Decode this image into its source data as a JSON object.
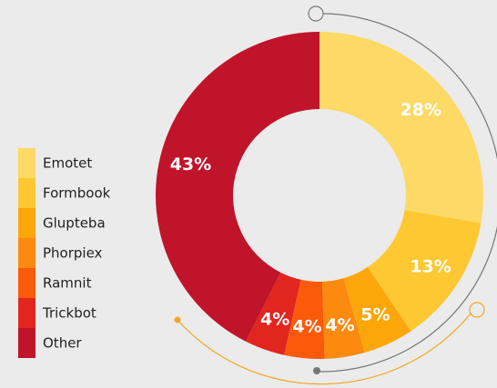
{
  "chart_data": {
    "type": "donut",
    "categories": [
      "Emotet",
      "Formbook",
      "Glupteba",
      "Phorpiex",
      "Ramnit",
      "Trickbot",
      "Other"
    ],
    "values": [
      28,
      13,
      5,
      4,
      4,
      4,
      43
    ],
    "value_labels": [
      "28%",
      "13%",
      "5%",
      "4%",
      "4%",
      "4%",
      "43%"
    ],
    "colors": [
      "#fdd966",
      "#fec832",
      "#fca60a",
      "#fb8a0f",
      "#fb5a0b",
      "#e0261f",
      "#c0142a"
    ],
    "legend": "left"
  }
}
